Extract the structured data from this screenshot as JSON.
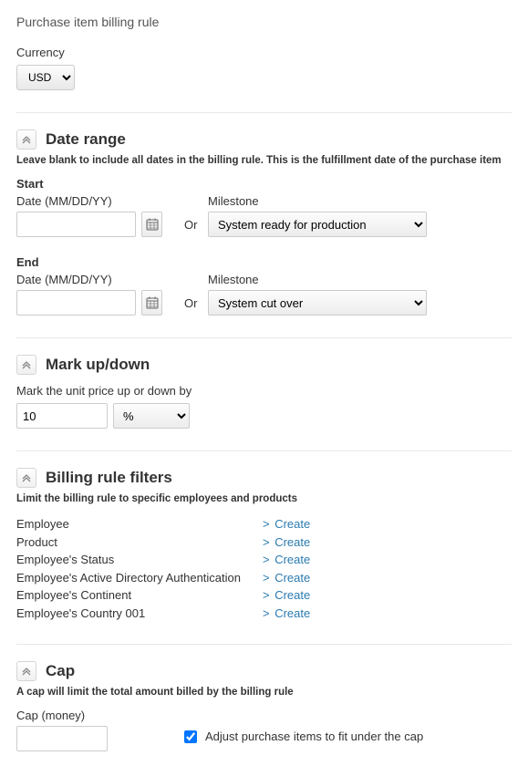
{
  "page": {
    "title": "Purchase item billing rule"
  },
  "currency": {
    "label": "Currency",
    "value": "USD"
  },
  "date_range": {
    "title": "Date range",
    "subtitle": "Leave blank to include all dates in the billing rule. This is the fulfillment date of the purchase item",
    "format_hint": "Date (MM/DD/YY)",
    "or_label": "Or",
    "milestone_label": "Milestone",
    "start": {
      "heading": "Start",
      "date": "",
      "milestone": "System ready for production"
    },
    "end": {
      "heading": "End",
      "date": "",
      "milestone": "System cut over"
    }
  },
  "markup": {
    "title": "Mark up/down",
    "subtitle": "Mark the unit price up or down by",
    "value": "10",
    "unit": "%"
  },
  "filters": {
    "title": "Billing rule filters",
    "subtitle": "Limit the billing rule to specific employees and products",
    "create_label": "Create",
    "items": [
      {
        "label": "Employee"
      },
      {
        "label": "Product"
      },
      {
        "label": "Employee's Status"
      },
      {
        "label": "Employee's Active Directory Authentication"
      },
      {
        "label": "Employee's Continent"
      },
      {
        "label": "Employee's Country 001"
      }
    ]
  },
  "cap": {
    "title": "Cap",
    "subtitle": "A cap will limit the total amount billed by the billing rule",
    "field_label": "Cap (money)",
    "value": "",
    "adjust_label": "Adjust purchase items to fit under the cap",
    "adjust_checked": true
  }
}
